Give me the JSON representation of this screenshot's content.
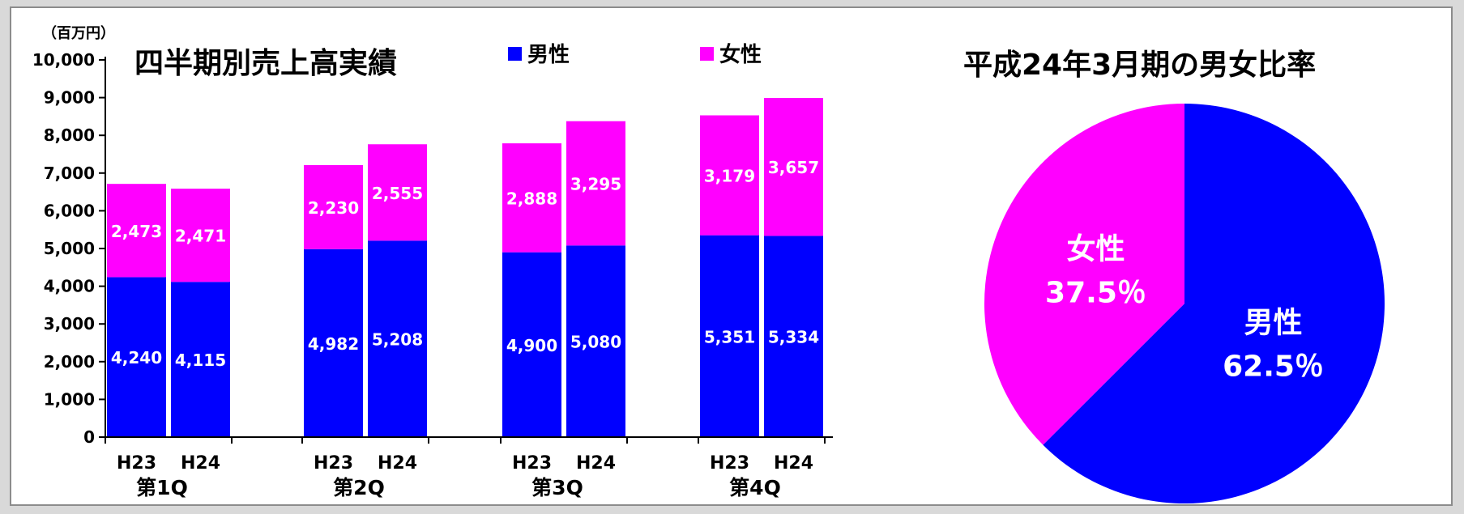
{
  "chart_data": [
    {
      "type": "bar",
      "stacked": true,
      "title": "四半期別売上高実績",
      "unit_label": "（百万円）",
      "ylim": [
        0,
        10000
      ],
      "ytick_labels": [
        "0",
        "1,000",
        "2,000",
        "3,000",
        "4,000",
        "5,000",
        "6,000",
        "7,000",
        "8,000",
        "9,000",
        "10,000"
      ],
      "groups": [
        {
          "label": "第1Q",
          "categories": [
            "H23",
            "H24"
          ]
        },
        {
          "label": "第2Q",
          "categories": [
            "H23",
            "H24"
          ]
        },
        {
          "label": "第3Q",
          "categories": [
            "H23",
            "H24"
          ]
        },
        {
          "label": "第4Q",
          "categories": [
            "H23",
            "H24"
          ]
        }
      ],
      "series": [
        {
          "name": "男性",
          "color": "#0000ff",
          "values": [
            4240,
            4115,
            4982,
            5208,
            4900,
            5080,
            5351,
            5334
          ],
          "labels": [
            "4,240",
            "4,115",
            "4,982",
            "5,208",
            "4,900",
            "5,080",
            "5,351",
            "5,334"
          ]
        },
        {
          "name": "女性",
          "color": "#ff00ff",
          "values": [
            2473,
            2471,
            2230,
            2555,
            2888,
            3295,
            3179,
            3657
          ],
          "labels": [
            "2,473",
            "2,471",
            "2,230",
            "2,555",
            "2,888",
            "3,295",
            "3,179",
            "3,657"
          ]
        }
      ],
      "legend": "top"
    },
    {
      "type": "pie",
      "title": "平成24年3月期の男女比率",
      "slices": [
        {
          "name": "男性",
          "value": 62.5,
          "label": "62.5％",
          "color": "#0000ff"
        },
        {
          "name": "女性",
          "value": 37.5,
          "label": "37.5％",
          "color": "#ff00ff"
        }
      ]
    }
  ]
}
